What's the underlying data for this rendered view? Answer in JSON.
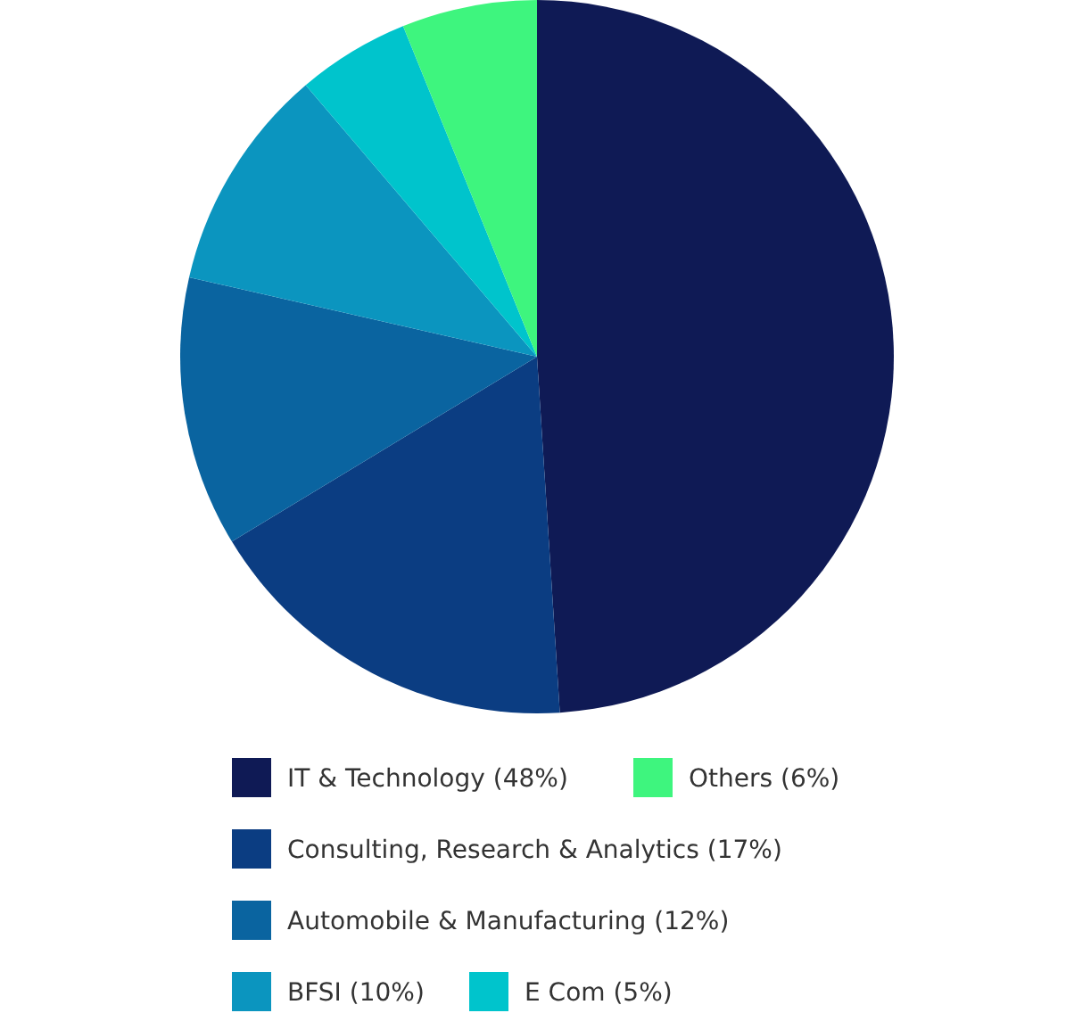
{
  "chart_data": {
    "type": "pie",
    "categories": [
      "IT & Technology (48%)",
      "Consulting, Research & Analytics (17%)",
      "Automobile & Manufacturing (12%)",
      "BFSI (10%)",
      "E Com (5%)",
      "Others (6%)"
    ],
    "values": [
      48,
      17,
      12,
      10,
      5,
      6
    ],
    "colors": [
      "#0f1a55",
      "#0b3d82",
      "#0a64a0",
      "#0b95bf",
      "#00c4cc",
      "#3ef57e"
    ],
    "legend": "bottom"
  }
}
